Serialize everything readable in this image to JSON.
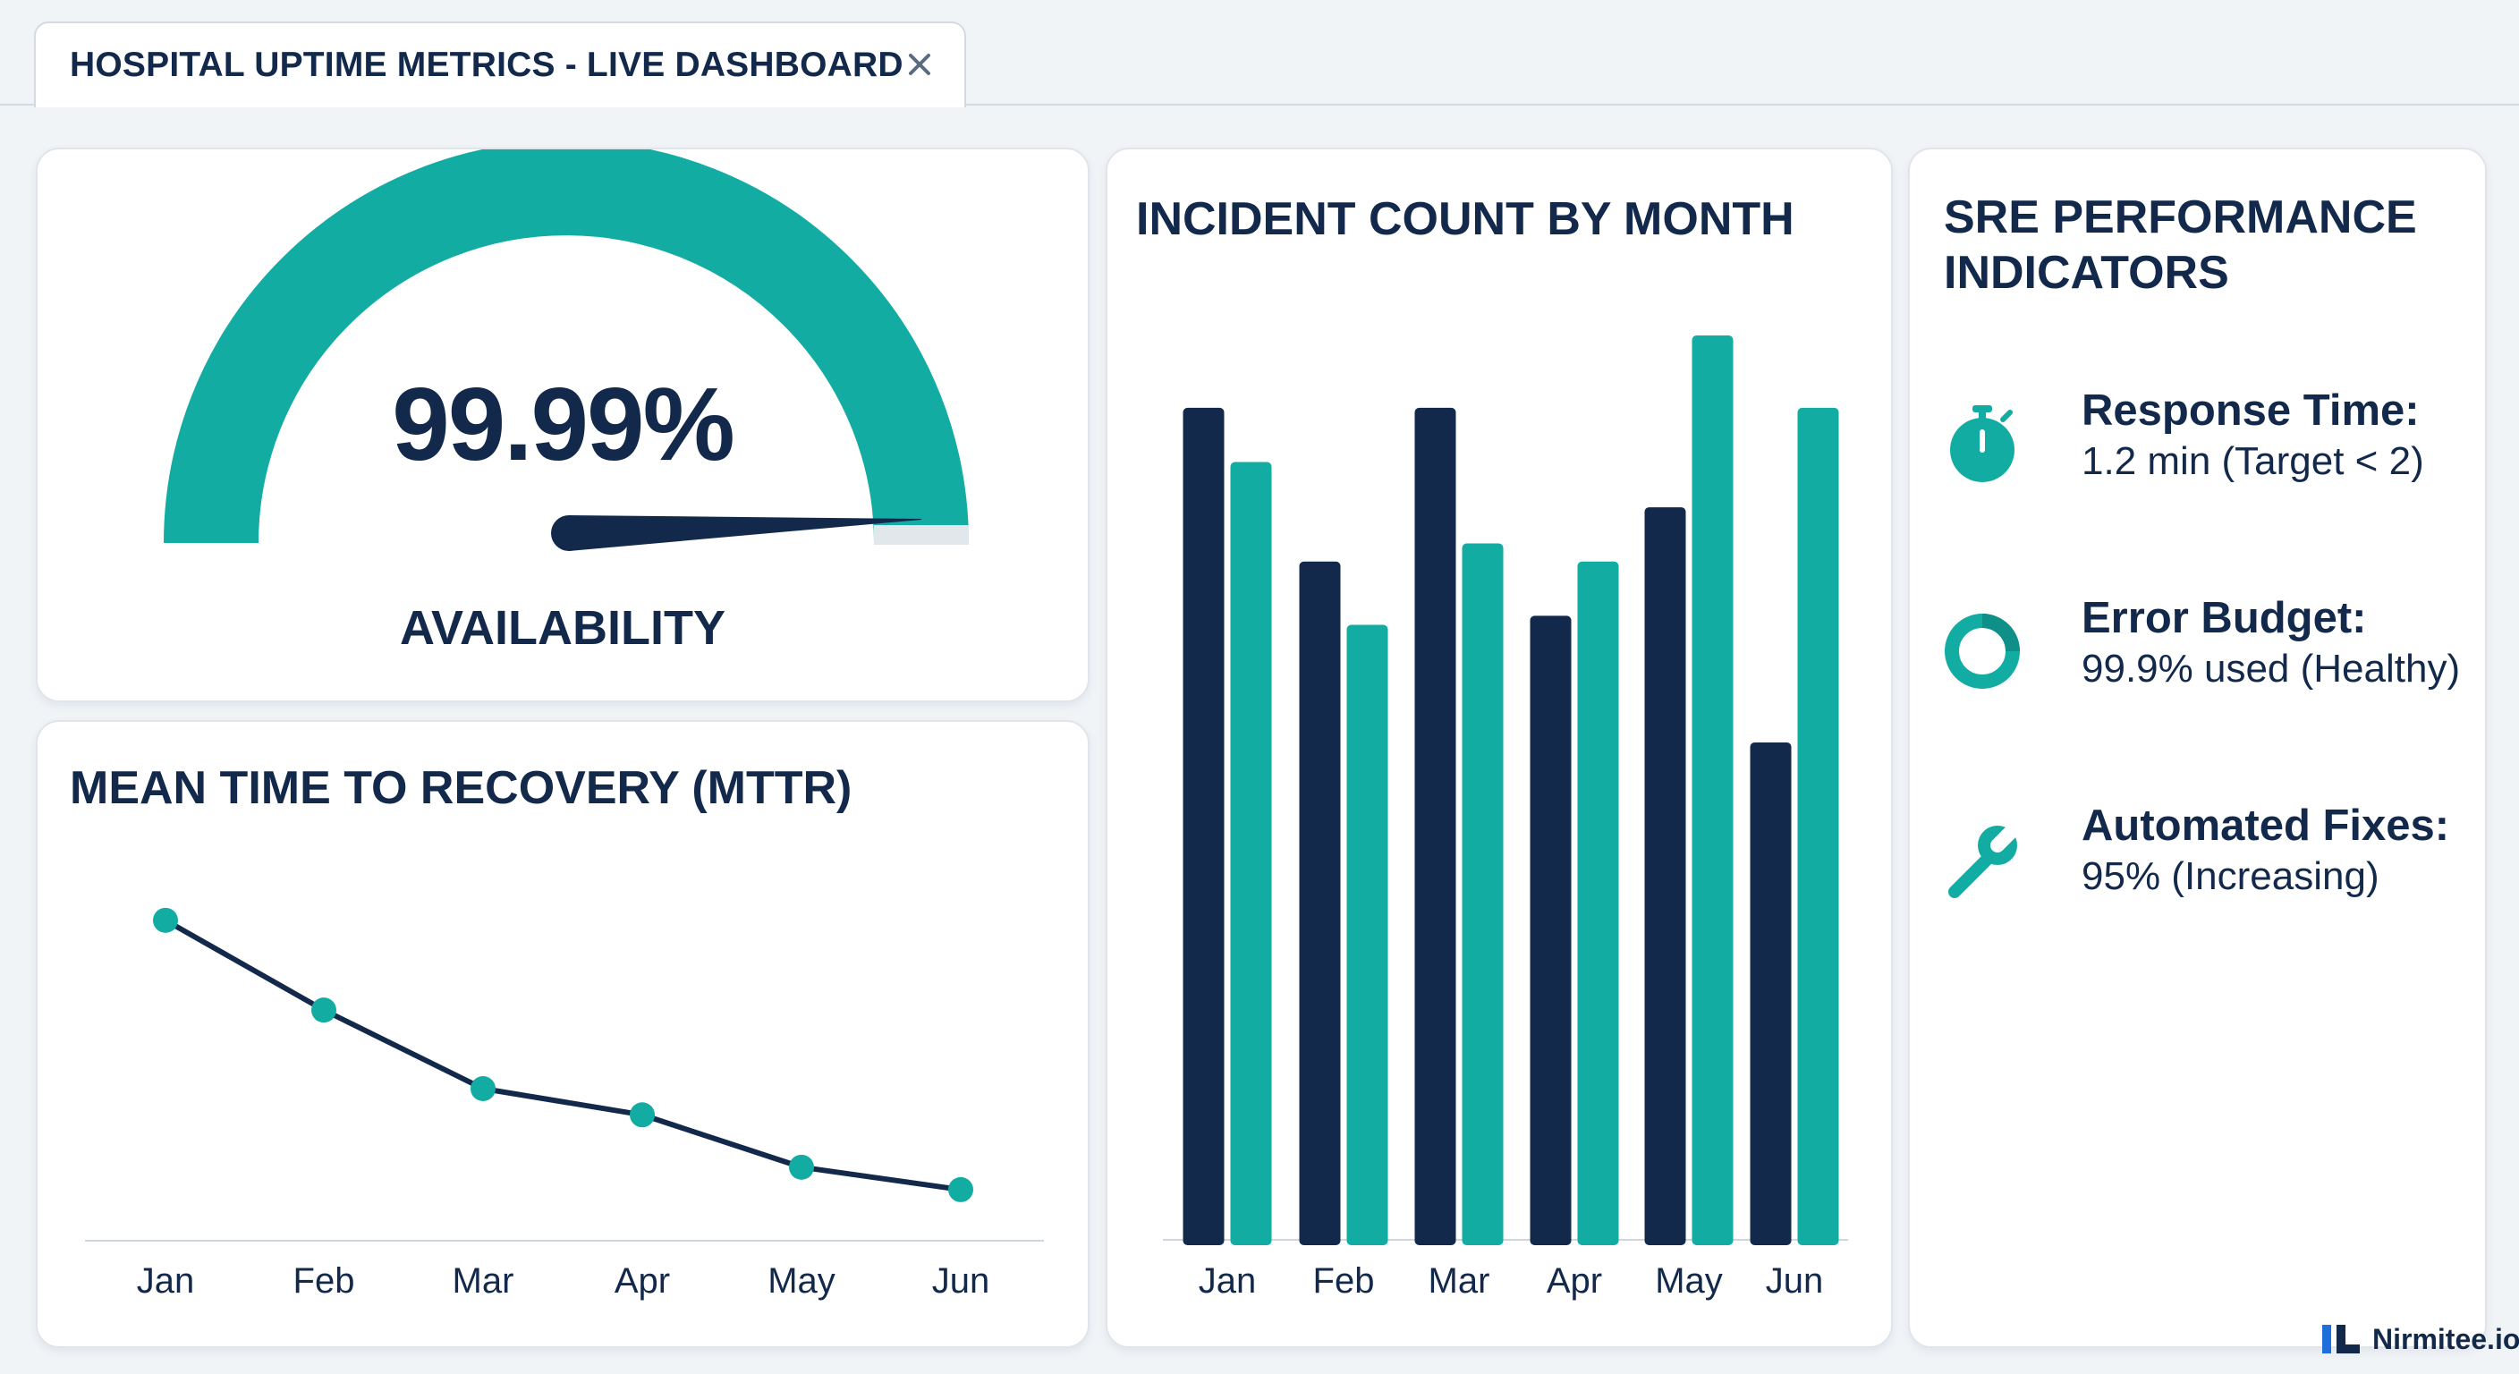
{
  "tab": {
    "title": "HOSPITAL UPTIME METRICS - LIVE DASHBOARD",
    "close_icon": "close-icon"
  },
  "availability": {
    "value": "99.99%",
    "label": "AVAILABILITY",
    "gauge_fraction": 0.9999
  },
  "mttr": {
    "title": "MEAN TIME TO RECOVERY (MTTR)",
    "chart_data": {
      "type": "line",
      "x": [
        "Jan",
        "Feb",
        "Mar",
        "Apr",
        "May",
        "Jun"
      ],
      "values": [
        100,
        76,
        55,
        48,
        34,
        28
      ],
      "ylim": [
        0,
        110
      ],
      "grid": false
    }
  },
  "incidents": {
    "title": "INCIDENT COUNT BY MONTH",
    "chart_data": {
      "type": "bar",
      "categories": [
        "Jan",
        "Feb",
        "Mar",
        "Apr",
        "May",
        "Jun"
      ],
      "series": [
        {
          "values": [
            92,
            75,
            92,
            69,
            81,
            55
          ]
        },
        {
          "values": [
            86,
            68,
            77,
            75,
            100,
            92
          ]
        }
      ],
      "ylim": [
        0,
        100
      ],
      "grid": false
    }
  },
  "sre": {
    "title_line1": "SRE PERFORMANCE",
    "title_line2": "INDICATORS",
    "items": [
      {
        "icon": "stopwatch-icon",
        "label": "Response Time:",
        "value": "1.2 min (Target < 2)"
      },
      {
        "icon": "donut-ring-icon",
        "label": "Error Budget:",
        "value": "99.9% used (Healthy)"
      },
      {
        "icon": "wrench-icon",
        "label": "Automated Fixes:",
        "value": "95% (Increasing)"
      }
    ]
  },
  "brand": {
    "name": "Nirmitee.io"
  },
  "colors": {
    "navy": "#13294b",
    "teal": "#13aca3",
    "background": "#f1f4f7"
  }
}
